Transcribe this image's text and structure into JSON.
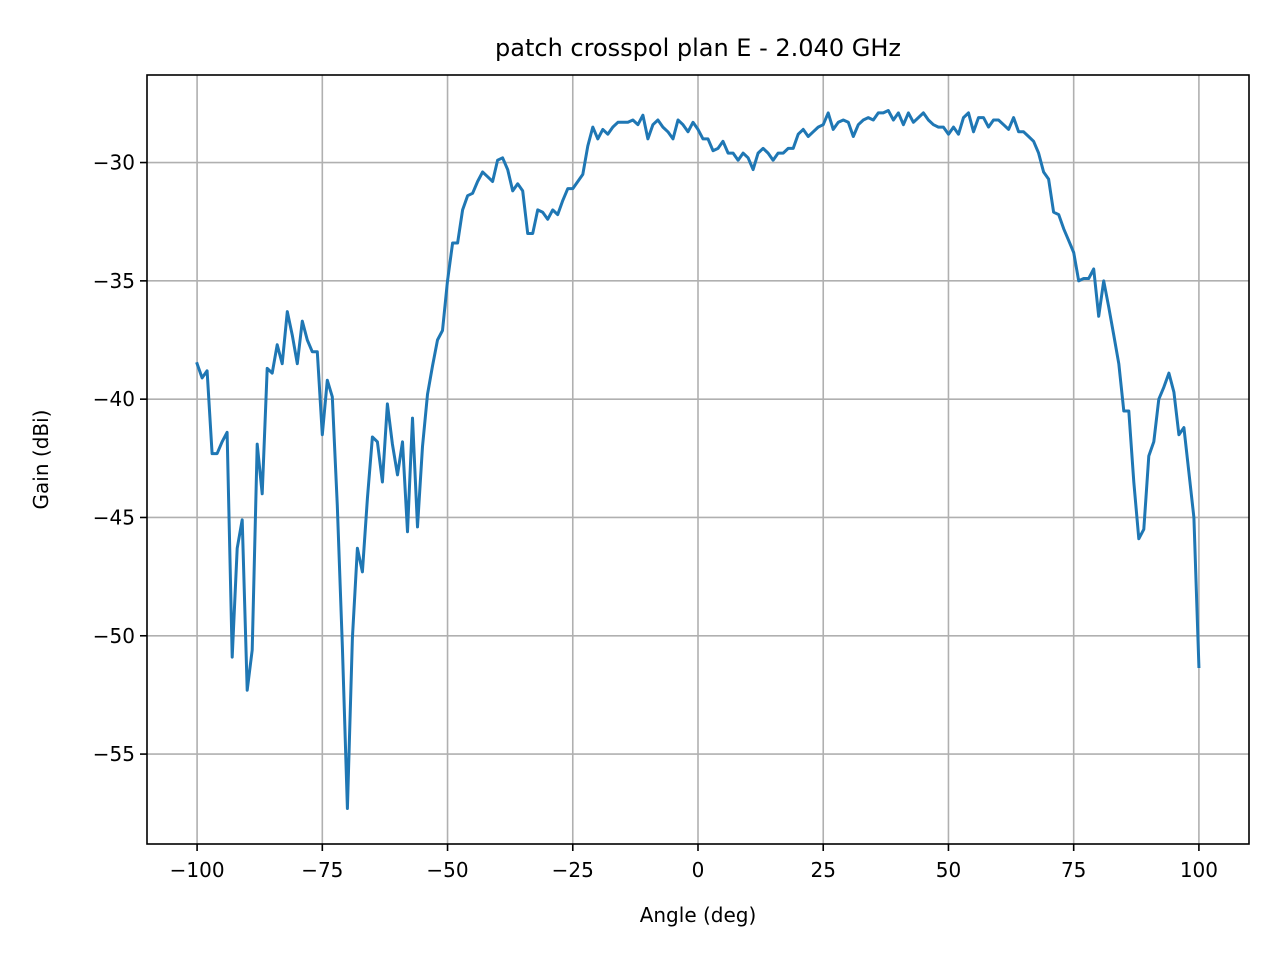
{
  "chart_data": {
    "type": "line",
    "title": "patch crosspol plan E - 2.040 GHz",
    "xlabel": "Angle (deg)",
    "ylabel": "Gain (dBi)",
    "xlim": [
      -110,
      110
    ],
    "ylim": [
      -58.8,
      -26.3
    ],
    "xticks": [
      -100,
      -75,
      -50,
      -25,
      0,
      25,
      50,
      75,
      100
    ],
    "yticks": [
      -55,
      -50,
      -45,
      -40,
      -35,
      -30
    ],
    "xtick_labels": [
      "−100",
      "−75",
      "−50",
      "−25",
      "0",
      "25",
      "50",
      "75",
      "100"
    ],
    "ytick_labels": [
      "−55",
      "−50",
      "−45",
      "−40",
      "−35",
      "−30"
    ],
    "grid": true,
    "line_color": "#1f77b4",
    "series": [
      {
        "x": [
          -100,
          -99,
          -98,
          -97,
          -96,
          -95,
          -94,
          -93,
          -92,
          -91,
          -90,
          -89,
          -88,
          -87,
          -86,
          -85,
          -84,
          -83,
          -82,
          -81,
          -80,
          -79,
          -78,
          -77,
          -76,
          -75,
          -74,
          -73,
          -72,
          -71,
          -70,
          -69,
          -68,
          -67,
          -66,
          -65,
          -64,
          -63,
          -62,
          -61,
          -60,
          -59,
          -58,
          -57,
          -56,
          -55,
          -54,
          -53,
          -52,
          -51,
          -50,
          -49,
          -48,
          -47,
          -46,
          -45,
          -44,
          -43,
          -42,
          -41,
          -40,
          -39,
          -38,
          -37,
          -36,
          -35,
          -34,
          -33,
          -32,
          -31,
          -30,
          -29,
          -28,
          -27,
          -26,
          -25,
          -24,
          -23,
          -22,
          -21,
          -20,
          -19,
          -18,
          -17,
          -16,
          -15,
          -14,
          -13,
          -12,
          -11,
          -10,
          -9,
          -8,
          -7,
          -6,
          -5,
          -4,
          -3,
          -2,
          -1,
          0,
          1,
          2,
          3,
          4,
          5,
          6,
          7,
          8,
          9,
          10,
          11,
          12,
          13,
          14,
          15,
          16,
          17,
          18,
          19,
          20,
          21,
          22,
          23,
          24,
          25,
          26,
          27,
          28,
          29,
          30,
          31,
          32,
          33,
          34,
          35,
          36,
          37,
          38,
          39,
          40,
          41,
          42,
          43,
          44,
          45,
          46,
          47,
          48,
          49,
          50,
          51,
          52,
          53,
          54,
          55,
          56,
          57,
          58,
          59,
          60,
          61,
          62,
          63,
          64,
          65,
          66,
          67,
          68,
          69,
          70,
          71,
          72,
          73,
          74,
          75,
          76,
          77,
          78,
          79,
          80,
          81,
          82,
          83,
          84,
          85,
          86,
          87,
          88,
          89,
          90,
          91,
          92,
          93,
          94,
          95,
          96,
          97,
          98,
          99,
          100
        ],
        "y": [
          -38.5,
          -39.1,
          -38.8,
          -42.3,
          -42.3,
          -41.8,
          -41.4,
          -50.9,
          -46.3,
          -45.1,
          -52.3,
          -50.6,
          -41.9,
          -44.0,
          -38.7,
          -38.9,
          -37.7,
          -38.5,
          -36.3,
          -37.3,
          -38.5,
          -36.7,
          -37.5,
          -38.0,
          -38.0,
          -41.5,
          -39.2,
          -39.9,
          -44.5,
          -50.5,
          -57.3,
          -50.1,
          -46.3,
          -47.3,
          -44.2,
          -41.6,
          -41.8,
          -43.5,
          -40.2,
          -41.9,
          -43.2,
          -41.8,
          -45.6,
          -40.8,
          -45.4,
          -42.0,
          -39.8,
          -38.6,
          -37.5,
          -37.1,
          -35.0,
          -33.4,
          -33.4,
          -32.0,
          -31.4,
          -31.3,
          -30.8,
          -30.4,
          -30.6,
          -30.8,
          -29.9,
          -29.8,
          -30.3,
          -31.2,
          -30.9,
          -31.2,
          -33.0,
          -33.0,
          -32.0,
          -32.1,
          -32.4,
          -32.0,
          -32.2,
          -31.6,
          -31.1,
          -31.1,
          -30.8,
          -30.5,
          -29.3,
          -28.5,
          -29.0,
          -28.6,
          -28.8,
          -28.5,
          -28.3,
          -28.3,
          -28.3,
          -28.2,
          -28.4,
          -28.0,
          -29.0,
          -28.4,
          -28.2,
          -28.5,
          -28.7,
          -29.0,
          -28.2,
          -28.4,
          -28.7,
          -28.3,
          -28.6,
          -29.0,
          -29.0,
          -29.5,
          -29.4,
          -29.1,
          -29.6,
          -29.6,
          -29.9,
          -29.6,
          -29.8,
          -30.3,
          -29.6,
          -29.4,
          -29.6,
          -29.9,
          -29.6,
          -29.6,
          -29.4,
          -29.4,
          -28.8,
          -28.6,
          -28.9,
          -28.7,
          -28.5,
          -28.4,
          -27.9,
          -28.6,
          -28.3,
          -28.2,
          -28.3,
          -28.9,
          -28.4,
          -28.2,
          -28.1,
          -28.2,
          -27.9,
          -27.9,
          -27.8,
          -28.2,
          -27.9,
          -28.4,
          -27.9,
          -28.3,
          -28.1,
          -27.9,
          -28.2,
          -28.4,
          -28.5,
          -28.5,
          -28.8,
          -28.5,
          -28.8,
          -28.1,
          -27.9,
          -28.7,
          -28.1,
          -28.1,
          -28.5,
          -28.2,
          -28.2,
          -28.4,
          -28.6,
          -28.1,
          -28.7,
          -28.7,
          -28.9,
          -29.1,
          -29.6,
          -30.4,
          -30.7,
          -32.1,
          -32.2,
          -32.8,
          -33.3,
          -33.8,
          -35.0,
          -34.9,
          -34.9,
          -34.5,
          -36.5,
          -35.0,
          -36.1,
          -37.3,
          -38.5,
          -40.5,
          -40.5,
          -43.5,
          -45.9,
          -45.5,
          -42.4,
          -41.8,
          -40.0,
          -39.5,
          -38.9,
          -39.7,
          -41.5,
          -41.2,
          -43.1,
          -45.0,
          -51.3
        ]
      }
    ]
  }
}
